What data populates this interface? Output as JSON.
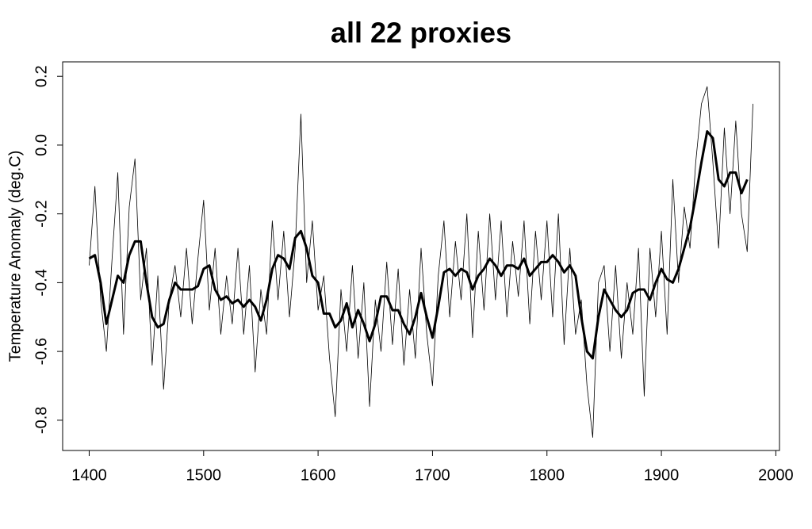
{
  "chart_data": {
    "type": "line",
    "title": "all 22 proxies",
    "y_label": "Temperature Anomaly (deg.C)",
    "x": [
      1400,
      1405,
      1410,
      1415,
      1420,
      1425,
      1430,
      1435,
      1440,
      1445,
      1450,
      1455,
      1460,
      1465,
      1470,
      1475,
      1480,
      1485,
      1490,
      1495,
      1500,
      1505,
      1510,
      1515,
      1520,
      1525,
      1530,
      1535,
      1540,
      1545,
      1550,
      1555,
      1560,
      1565,
      1570,
      1575,
      1580,
      1585,
      1590,
      1595,
      1600,
      1605,
      1610,
      1615,
      1620,
      1625,
      1630,
      1635,
      1640,
      1645,
      1650,
      1655,
      1660,
      1665,
      1670,
      1675,
      1680,
      1685,
      1690,
      1695,
      1700,
      1705,
      1710,
      1715,
      1720,
      1725,
      1730,
      1735,
      1740,
      1745,
      1750,
      1755,
      1760,
      1765,
      1770,
      1775,
      1780,
      1785,
      1790,
      1795,
      1800,
      1805,
      1810,
      1815,
      1820,
      1825,
      1830,
      1835,
      1840,
      1845,
      1850,
      1855,
      1860,
      1865,
      1870,
      1875,
      1880,
      1885,
      1890,
      1895,
      1900,
      1905,
      1910,
      1915,
      1920,
      1925,
      1930,
      1935,
      1940,
      1945,
      1950,
      1955,
      1960,
      1965,
      1970,
      1975,
      1980
    ],
    "series": [
      {
        "color": "#000000",
        "width": 0.8,
        "values": [
          -0.35,
          -0.12,
          -0.45,
          -0.6,
          -0.33,
          -0.08,
          -0.55,
          -0.18,
          -0.04,
          -0.45,
          -0.3,
          -0.64,
          -0.38,
          -0.71,
          -0.45,
          -0.35,
          -0.5,
          -0.3,
          -0.52,
          -0.33,
          -0.16,
          -0.48,
          -0.3,
          -0.55,
          -0.38,
          -0.52,
          -0.3,
          -0.55,
          -0.35,
          -0.66,
          -0.42,
          -0.55,
          -0.22,
          -0.45,
          -0.25,
          -0.5,
          -0.3,
          0.09,
          -0.4,
          -0.22,
          -0.48,
          -0.38,
          -0.62,
          -0.79,
          -0.42,
          -0.6,
          -0.35,
          -0.62,
          -0.4,
          -0.76,
          -0.45,
          -0.6,
          -0.34,
          -0.58,
          -0.36,
          -0.64,
          -0.42,
          -0.62,
          -0.3,
          -0.55,
          -0.7,
          -0.38,
          -0.22,
          -0.5,
          -0.28,
          -0.45,
          -0.2,
          -0.56,
          -0.25,
          -0.48,
          -0.2,
          -0.45,
          -0.22,
          -0.5,
          -0.28,
          -0.44,
          -0.22,
          -0.52,
          -0.25,
          -0.45,
          -0.22,
          -0.5,
          -0.2,
          -0.58,
          -0.3,
          -0.55,
          -0.45,
          -0.7,
          -0.85,
          -0.4,
          -0.35,
          -0.6,
          -0.35,
          -0.62,
          -0.4,
          -0.55,
          -0.3,
          -0.73,
          -0.3,
          -0.5,
          -0.25,
          -0.55,
          -0.1,
          -0.4,
          -0.18,
          -0.3,
          -0.05,
          0.12,
          0.17,
          -0.05,
          -0.3,
          0.05,
          -0.2,
          0.07,
          -0.2,
          -0.31,
          0.12
        ]
      },
      {
        "color": "#000000",
        "width": 3,
        "values": [
          -0.33,
          -0.32,
          -0.4,
          -0.52,
          -0.45,
          -0.38,
          -0.4,
          -0.32,
          -0.28,
          -0.28,
          -0.4,
          -0.5,
          -0.53,
          -0.52,
          -0.45,
          -0.4,
          -0.42,
          -0.42,
          -0.42,
          -0.41,
          -0.36,
          -0.35,
          -0.42,
          -0.45,
          -0.44,
          -0.46,
          -0.45,
          -0.47,
          -0.45,
          -0.47,
          -0.51,
          -0.45,
          -0.36,
          -0.32,
          -0.33,
          -0.36,
          -0.27,
          -0.25,
          -0.3,
          -0.38,
          -0.4,
          -0.49,
          -0.49,
          -0.53,
          -0.51,
          -0.46,
          -0.53,
          -0.48,
          -0.52,
          -0.57,
          -0.52,
          -0.44,
          -0.44,
          -0.48,
          -0.48,
          -0.52,
          -0.55,
          -0.5,
          -0.43,
          -0.5,
          -0.56,
          -0.47,
          -0.37,
          -0.36,
          -0.38,
          -0.36,
          -0.37,
          -0.42,
          -0.38,
          -0.36,
          -0.33,
          -0.35,
          -0.38,
          -0.35,
          -0.35,
          -0.36,
          -0.33,
          -0.38,
          -0.36,
          -0.34,
          -0.34,
          -0.32,
          -0.34,
          -0.37,
          -0.35,
          -0.38,
          -0.5,
          -0.6,
          -0.62,
          -0.5,
          -0.42,
          -0.45,
          -0.48,
          -0.5,
          -0.48,
          -0.43,
          -0.42,
          -0.42,
          -0.45,
          -0.4,
          -0.36,
          -0.39,
          -0.4,
          -0.36,
          -0.3,
          -0.24,
          -0.15,
          -0.05,
          0.04,
          0.02,
          -0.1,
          -0.12,
          -0.08,
          -0.08,
          -0.14,
          -0.1,
          null
        ]
      }
    ],
    "xlim": [
      1376.8,
      2003.2
    ],
    "xticks": [
      1400,
      1500,
      1600,
      1700,
      1800,
      1900,
      2000
    ],
    "ylim": [
      -0.888,
      0.242
    ],
    "yticks": [
      -0.8,
      -0.6,
      -0.4,
      -0.2,
      {
        "value": 0,
        "label": "0.0"
      },
      0.2
    ]
  }
}
